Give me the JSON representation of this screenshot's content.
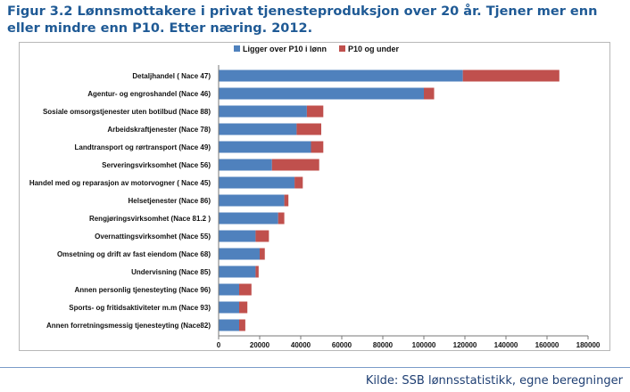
{
  "title": "Figur 3.2 Lønnsmottakere i privat tjenesteproduksjon over 20 år. Tjener mer enn eller mindre enn P10. Etter næring. 2012.",
  "source": "Kilde: SSB lønnsstatistikk, egne beregninger",
  "chart_data": {
    "type": "bar",
    "orientation": "horizontal",
    "stacked": true,
    "categories": [
      "Detaljhandel ( Nace 47)",
      "Agentur- og engroshandel (Nace 46)",
      "Sosiale omsorgstjenester uten botilbud (Nace 88)",
      "Arbeidskraftjenester (Nace 78)",
      "Landtransport og rørtransport (Nace 49)",
      "Serveringsvirksomhet (Nace 56)",
      "Handel med og reparasjon av motorvogner ( Nace 45)",
      "Helsetjenester (Nace 86)",
      "Rengjøringsvirksomhet (Nace  81.2 )",
      "Overnattingsvirksomhet (Nace 55)",
      "Omsetning og drift av fast eiendom (Nace 68)",
      "Undervisning (Nace 85)",
      "Annen personlig tjenesteyting (Nace 96)",
      "Sports- og fritidsaktiviteter m.m (Nace 93)",
      "Annen forretningsmessig tjenesteyting (Nace82)"
    ],
    "series": [
      {
        "name": "Ligger over P10 i lønn",
        "color": "#4f81bd",
        "values": [
          119000,
          100000,
          43000,
          38000,
          45000,
          26000,
          37000,
          32000,
          29000,
          18000,
          20000,
          18000,
          10000,
          10000,
          10000
        ]
      },
      {
        "name": "P10 og under",
        "color": "#c0504d",
        "values": [
          47000,
          5000,
          8000,
          12000,
          6000,
          23000,
          4000,
          2000,
          3000,
          6500,
          2500,
          1500,
          6000,
          4000,
          3000
        ]
      }
    ],
    "xlim": [
      0,
      180000
    ],
    "xticks": [
      "0",
      "20000",
      "40000",
      "60000",
      "80000",
      "100000",
      "120000",
      "140000",
      "160000",
      "180000"
    ],
    "legend_position": "top",
    "grid": false
  }
}
